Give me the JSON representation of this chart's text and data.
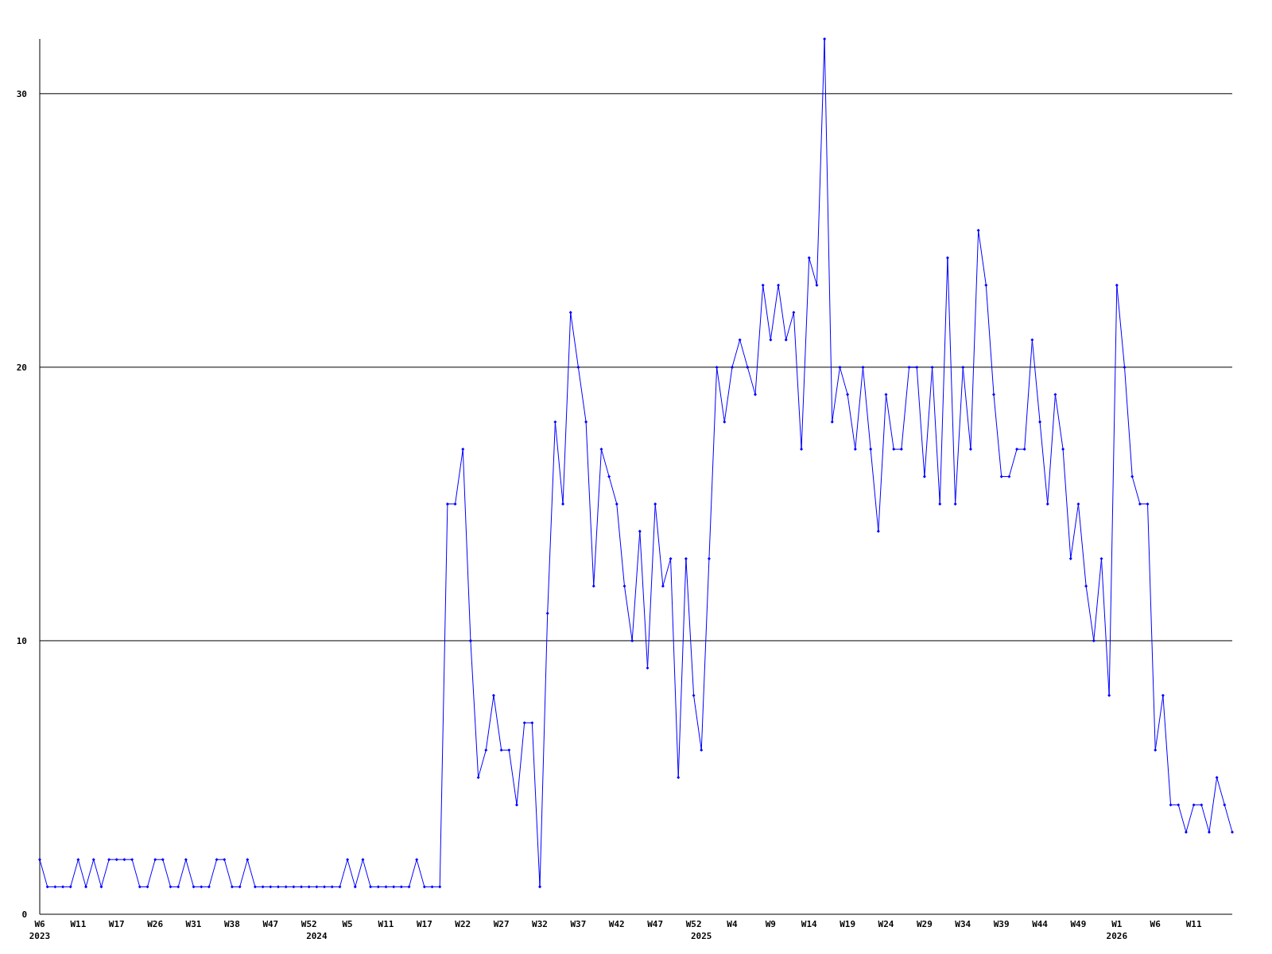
{
  "chart_data": {
    "type": "line",
    "categories": [
      "W6\n2023",
      null,
      null,
      null,
      null,
      "W11",
      null,
      null,
      null,
      null,
      "W17",
      null,
      null,
      null,
      null,
      "W26",
      null,
      null,
      null,
      null,
      "W31",
      null,
      null,
      null,
      null,
      "W38",
      null,
      null,
      null,
      null,
      "W47",
      null,
      null,
      null,
      null,
      "W52",
      "\n2024",
      null,
      null,
      null,
      "W5",
      null,
      null,
      null,
      null,
      "W11",
      null,
      null,
      null,
      null,
      "W17",
      null,
      null,
      null,
      null,
      "W22",
      null,
      null,
      null,
      null,
      "W27",
      null,
      null,
      null,
      null,
      "W32",
      null,
      null,
      null,
      null,
      "W37",
      null,
      null,
      null,
      null,
      "W42",
      null,
      null,
      null,
      null,
      "W47",
      null,
      null,
      null,
      null,
      "W52",
      "\n2025",
      null,
      null,
      null,
      "W4",
      null,
      null,
      null,
      null,
      "W9",
      null,
      null,
      null,
      null,
      "W14",
      null,
      null,
      null,
      null,
      "W19",
      null,
      null,
      null,
      null,
      "W24",
      null,
      null,
      null,
      null,
      "W29",
      null,
      null,
      null,
      null,
      "W34",
      null,
      null,
      null,
      null,
      "W39",
      null,
      null,
      null,
      null,
      "W44",
      null,
      null,
      null,
      null,
      "W49",
      null,
      null,
      null,
      null,
      "W1\n2026",
      null,
      null,
      null,
      null,
      "W6",
      null,
      null,
      null,
      null,
      "W11",
      null,
      null,
      null,
      null,
      null
    ],
    "series": [
      {
        "color": "#0000ff",
        "values": [
          2,
          1,
          1,
          1,
          1,
          2,
          1,
          2,
          1,
          2,
          2,
          2,
          2,
          1,
          1,
          2,
          2,
          1,
          1,
          2,
          1,
          1,
          1,
          2,
          2,
          1,
          1,
          2,
          1,
          1,
          1,
          1,
          1,
          1,
          1,
          1,
          1,
          1,
          1,
          1,
          2,
          1,
          2,
          1,
          1,
          1,
          1,
          1,
          1,
          2,
          1,
          1,
          1,
          15,
          15,
          17,
          10,
          5,
          6,
          8,
          6,
          6,
          4,
          7,
          7,
          1,
          11,
          18,
          15,
          22,
          20,
          18,
          12,
          17,
          16,
          15,
          12,
          10,
          14,
          9,
          15,
          12,
          13,
          5,
          13,
          8,
          6,
          13,
          20,
          18,
          20,
          21,
          20,
          19,
          23,
          21,
          23,
          21,
          22,
          17,
          24,
          23,
          32,
          18,
          20,
          19,
          17,
          20,
          17,
          14,
          19,
          17,
          17,
          20,
          20,
          16,
          20,
          15,
          24,
          15,
          20,
          17,
          25,
          23,
          19,
          16,
          16,
          17,
          17,
          21,
          18,
          15,
          19,
          17,
          13,
          15,
          12,
          10,
          13,
          8,
          23,
          20,
          16,
          15,
          15,
          6,
          8,
          4,
          4,
          3,
          4,
          4,
          3,
          5,
          4,
          3
        ]
      }
    ],
    "ylim": [
      0,
      32
    ],
    "yticks": [
      0,
      10,
      20,
      30
    ],
    "grid": "y",
    "marker": "diamond",
    "line_style": "solid"
  }
}
